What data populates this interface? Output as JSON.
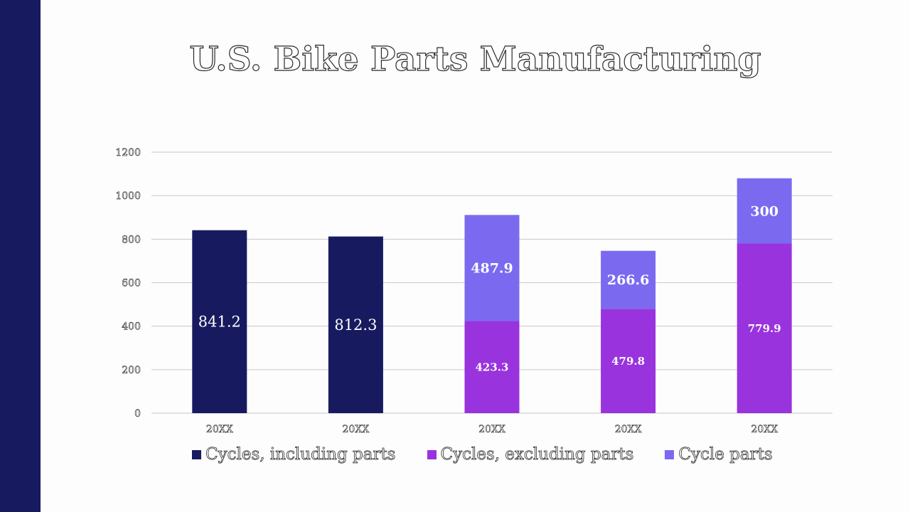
{
  "colors": {
    "side_band": "#181a60",
    "grid": "#c8c8c8",
    "series": [
      "#181a60",
      "#9933dd",
      "#7b6af0"
    ]
  },
  "chart_data": {
    "type": "bar",
    "stacked": true,
    "title": "U.S. Bike Parts Manufacturing",
    "categories": [
      "20XX",
      "20XX",
      "20XX",
      "20XX",
      "20XX"
    ],
    "series": [
      {
        "name": "Cycles, including parts",
        "values": [
          841.2,
          812.3,
          null,
          null,
          null
        ]
      },
      {
        "name": "Cycles, excluding parts",
        "values": [
          null,
          null,
          423.3,
          479.8,
          779.9
        ]
      },
      {
        "name": "Cycle parts",
        "values": [
          null,
          null,
          487.9,
          266.6,
          300
        ]
      }
    ],
    "data_labels": [
      [
        "841.2",
        "812.3",
        null,
        null,
        null
      ],
      [
        null,
        null,
        "423.3",
        "479.8",
        "779.9"
      ],
      [
        null,
        null,
        "487.9",
        "266.6",
        "300"
      ]
    ],
    "ylim": [
      0,
      1200
    ],
    "yticks": [
      0,
      200,
      400,
      600,
      800,
      1000,
      1200
    ],
    "grid": true,
    "legend_position": "bottom"
  }
}
